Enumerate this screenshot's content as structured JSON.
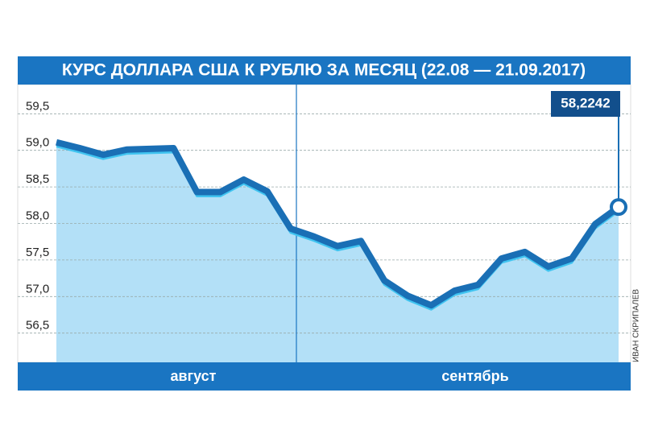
{
  "chart_data": {
    "type": "area",
    "title": "КУРС ДОЛЛАРА США К РУБЛЮ ЗА МЕСЯЦ (22.08 — 21.09.2017)",
    "values": [
      59.11,
      59.03,
      58.94,
      59.01,
      59.02,
      59.03,
      58.43,
      58.43,
      58.6,
      58.44,
      57.93,
      57.82,
      57.69,
      57.76,
      57.22,
      57.01,
      56.88,
      57.08,
      57.16,
      57.52,
      57.61,
      57.41,
      57.52,
      57.99,
      58.2242
    ],
    "value_labels": [
      null,
      null,
      null,
      null,
      null,
      null,
      null,
      null,
      null,
      null,
      null,
      null,
      null,
      null,
      null,
      null,
      null,
      null,
      null,
      null,
      null,
      null,
      null,
      null,
      "58,2242"
    ],
    "months": [
      "август",
      "сентябрь"
    ],
    "ylim": [
      56.1,
      59.9
    ],
    "yticks": [
      {
        "value": 56.5,
        "label": "56,5"
      },
      {
        "value": 57.0,
        "label": "57,0"
      },
      {
        "value": 57.5,
        "label": "57,5"
      },
      {
        "value": 58.0,
        "label": "58,0"
      },
      {
        "value": 58.5,
        "label": "58,5"
      },
      {
        "value": 59.0,
        "label": "59,0"
      },
      {
        "value": 59.5,
        "label": "59,5"
      }
    ],
    "grid": true,
    "color": "#1a6fb5",
    "fill_color": "#b3e0f7",
    "credit": "ИВАН СКРИПАЛЕВ"
  }
}
